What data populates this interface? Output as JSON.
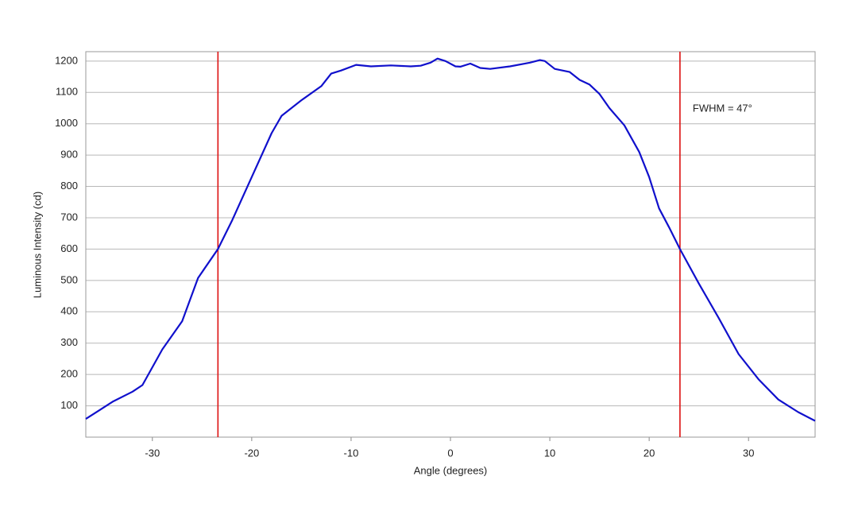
{
  "chart_data": {
    "type": "line",
    "x_label": "Angle (degrees)",
    "y_label": "Luminous Intensity (cd)",
    "annotation": "FWHM = 47°",
    "x": [
      -36.7,
      -34,
      -32,
      -31,
      -29,
      -27,
      -25.4,
      -23.4,
      -22,
      -20,
      -18,
      -17,
      -15,
      -13,
      -12,
      -11,
      -9.5,
      -8,
      -6,
      -4,
      -3,
      -2,
      -1.3,
      -0.5,
      0.5,
      1,
      2,
      3,
      4,
      6,
      8,
      9,
      9.5,
      10.5,
      12,
      13,
      14,
      15,
      16,
      17.5,
      19,
      20,
      21,
      22,
      23.1,
      25,
      27,
      29,
      31,
      33,
      35,
      36.7
    ],
    "series": [
      {
        "color": "#1010cc",
        "values": [
          58,
          113,
          145,
          166,
          280,
          370,
          508,
          600,
          690,
          830,
          970,
          1025,
          1075,
          1120,
          1160,
          1170,
          1188,
          1183,
          1186,
          1183,
          1185,
          1195,
          1208,
          1200,
          1183,
          1182,
          1192,
          1178,
          1175,
          1183,
          1195,
          1203,
          1200,
          1175,
          1165,
          1140,
          1125,
          1095,
          1050,
          995,
          910,
          830,
          730,
          670,
          600,
          490,
          380,
          265,
          185,
          120,
          80,
          52
        ]
      }
    ],
    "vlines": [
      -23.4,
      23.1
    ],
    "vline_color": "#dd1111",
    "xlim": [
      -36.7,
      36.7
    ],
    "ylim": [
      0,
      1230
    ],
    "xticks": [
      -30,
      -20,
      -10,
      0,
      10,
      20,
      30
    ],
    "yticks": [
      100,
      200,
      300,
      400,
      500,
      600,
      700,
      800,
      900,
      1000,
      1100,
      1200
    ],
    "grid": true
  }
}
